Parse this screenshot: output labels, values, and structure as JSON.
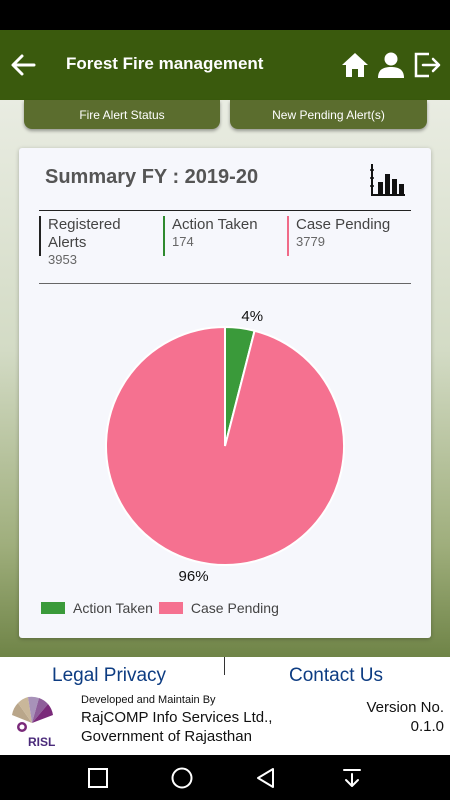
{
  "app_bar": {
    "title": "Forest Fire management"
  },
  "tabs": {
    "fire_alert_status": "Fire Alert Status",
    "new_pending_alerts": "New Pending Alert(s)"
  },
  "summary": {
    "title": "Summary FY : 2019-20",
    "stats": [
      {
        "label": "Registered Alerts",
        "value": "3953"
      },
      {
        "label": "Action Taken",
        "value": "174"
      },
      {
        "label": "Case Pending",
        "value": "3779"
      }
    ]
  },
  "chart_data": {
    "type": "pie",
    "slices": [
      {
        "name": "Action Taken",
        "value": 4,
        "label": "4%",
        "color": "#3a9a3a"
      },
      {
        "name": "Case Pending",
        "value": 96,
        "label": "96%",
        "color": "#f57190"
      }
    ],
    "legend": [
      "Action Taken",
      "Case Pending"
    ],
    "legend_position": "bottom-left"
  },
  "footer": {
    "legal": "Legal Privacy",
    "contact": "Contact Us",
    "developed_by": "Developed and Maintain By",
    "company": "RajCOMP Info Services Ltd.,",
    "government": "Government of Rajasthan",
    "version_label": "Version No.",
    "version": "0.1.0",
    "logo_text": "RISL"
  },
  "icons": {
    "back": "back-arrow-icon",
    "home": "home-icon",
    "user": "user-icon",
    "logout": "logout-icon",
    "chart": "bar-chart-icon"
  }
}
